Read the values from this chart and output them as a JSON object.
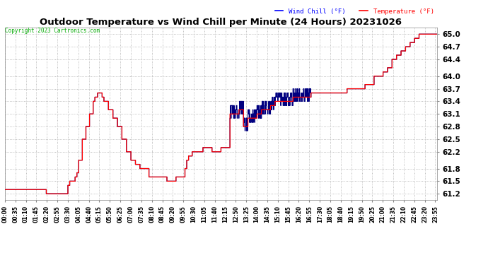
{
  "title": "Outdoor Temperature vs Wind Chill per Minute (24 Hours) 20231026",
  "copyright": "Copyright 2023 Cartronics.com",
  "fig_bg_color": "#ffffff",
  "plot_bg_color": "#ffffff",
  "title_color": "#000000",
  "tick_color": "#000000",
  "grid_color": "#aaaaaa",
  "wind_chill_color": "#000080",
  "temperature_color": "#ff0000",
  "yticks": [
    61.2,
    61.5,
    61.8,
    62.2,
    62.5,
    62.8,
    63.1,
    63.4,
    63.7,
    64.0,
    64.4,
    64.7,
    65.0
  ],
  "ylim": [
    61.05,
    65.15
  ],
  "legend_wind_chill": "Wind Chill (°F)",
  "legend_temperature": "Temperature (°F)",
  "copyright_color": "#00aa00",
  "wind_chill_legend_color": "#0000ff",
  "label_times": [
    "00:00",
    "00:35",
    "01:10",
    "01:45",
    "02:20",
    "02:55",
    "03:30",
    "04:05",
    "04:40",
    "05:15",
    "05:50",
    "06:25",
    "07:00",
    "07:35",
    "08:10",
    "08:45",
    "09:20",
    "09:55",
    "10:30",
    "11:05",
    "11:40",
    "12:15",
    "12:50",
    "13:25",
    "14:00",
    "14:35",
    "15:10",
    "15:45",
    "16:20",
    "16:55",
    "17:30",
    "18:05",
    "18:40",
    "19:15",
    "19:50",
    "20:25",
    "21:00",
    "21:35",
    "22:10",
    "22:45",
    "23:20",
    "23:55"
  ]
}
